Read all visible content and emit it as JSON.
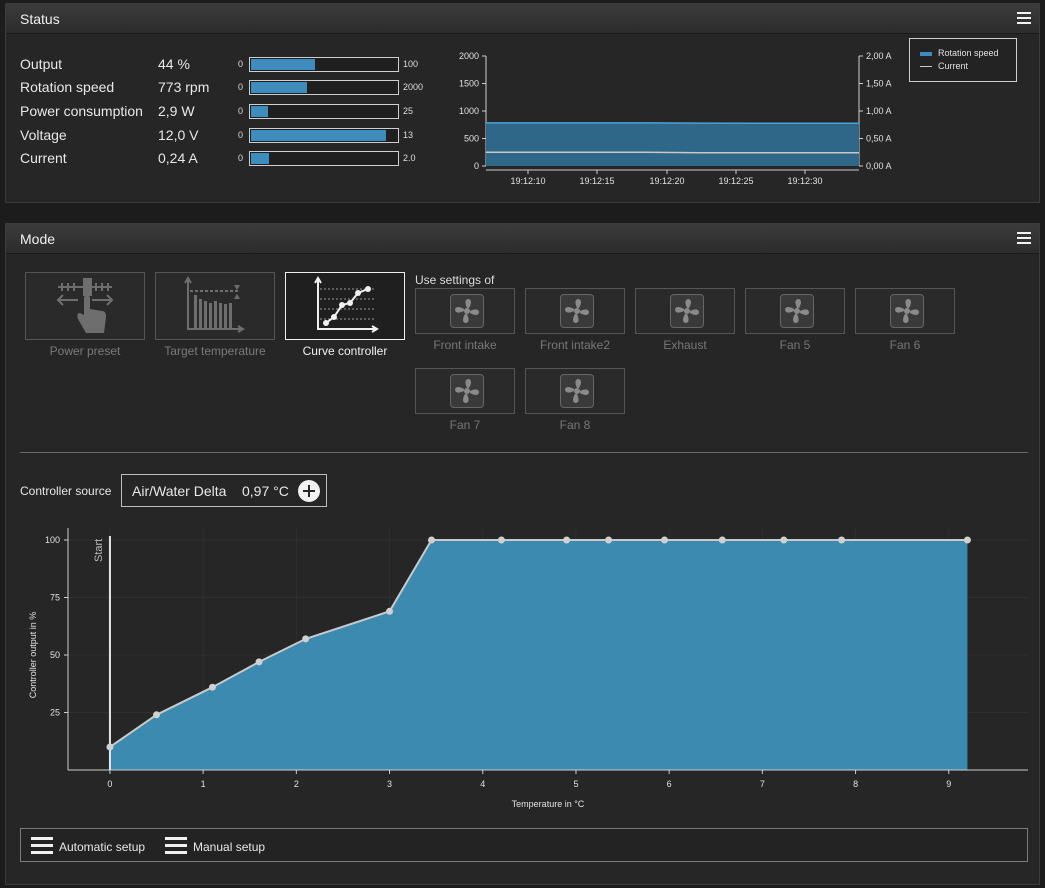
{
  "status": {
    "title": "Status",
    "rows": [
      {
        "label": "Output",
        "value": "44 %",
        "min": "0",
        "max": "100",
        "fraction": 0.44
      },
      {
        "label": "Rotation speed",
        "value": "773 rpm",
        "min": "0",
        "max": "2000",
        "fraction": 0.386
      },
      {
        "label": "Power consumption",
        "value": "2,9 W",
        "min": "0",
        "max": "25",
        "fraction": 0.116
      },
      {
        "label": "Voltage",
        "value": "12,0 V",
        "min": "0",
        "max": "13",
        "fraction": 0.923
      },
      {
        "label": "Current",
        "value": "0,24 A",
        "min": "0",
        "max": "2.0",
        "fraction": 0.12
      }
    ]
  },
  "status_chart": {
    "type": "area",
    "x_ticks": [
      "19:12:10",
      "19:12:15",
      "19:12:20",
      "19:12:25",
      "19:12:30"
    ],
    "left_ticks": [
      "2000",
      "1500",
      "1000",
      "500",
      "0"
    ],
    "right_ticks": [
      "2,00 A",
      "1,50 A",
      "1,00 A",
      "0,50 A",
      "0,00 A"
    ],
    "left_ylim": [
      0,
      2000
    ],
    "right_ylim": [
      0,
      2
    ],
    "series": [
      {
        "name": "Rotation speed",
        "values": [
          785,
          785,
          785,
          785,
          780,
          778,
          778,
          778
        ]
      },
      {
        "name": "Current",
        "values": [
          0.25,
          0.25,
          0.25,
          0.25,
          0.24,
          0.24,
          0.24,
          0.24
        ]
      }
    ],
    "colors": {
      "rotation": "#3d8cbd",
      "current": "#c8c8c8"
    }
  },
  "mode": {
    "title": "Mode",
    "modes": [
      {
        "label": "Power preset",
        "active": false
      },
      {
        "label": "Target temperature",
        "active": false
      },
      {
        "label": "Curve controller",
        "active": true
      }
    ],
    "use_settings_label": "Use settings of",
    "fans": [
      "Front intake",
      "Front intake2",
      "Exhaust",
      "Fan 5",
      "Fan 6",
      "Fan 7",
      "Fan 8"
    ],
    "controller_source_label": "Controller source",
    "controller_source_name": "Air/Water Delta",
    "controller_source_value": "0,97 °C",
    "automatic_setup": "Automatic setup",
    "manual_setup": "Manual setup"
  },
  "chart_data": {
    "type": "area",
    "xlabel": "Temperature in °C",
    "ylabel": "Controller output in %",
    "x_ticks": [
      "0",
      "1",
      "2",
      "3",
      "4",
      "5",
      "6",
      "7",
      "8",
      "9"
    ],
    "y_ticks": [
      "25",
      "50",
      "75",
      "100"
    ],
    "xlim": [
      -0.45,
      9.85
    ],
    "ylim": [
      0,
      100
    ],
    "start_label": "Start",
    "start_x": 0,
    "grid": true,
    "points": [
      {
        "x": 0,
        "y": 10
      },
      {
        "x": 0.5,
        "y": 24
      },
      {
        "x": 1.1,
        "y": 36
      },
      {
        "x": 1.6,
        "y": 47
      },
      {
        "x": 2.1,
        "y": 57
      },
      {
        "x": 3.0,
        "y": 69
      },
      {
        "x": 3.45,
        "y": 100
      },
      {
        "x": 4.2,
        "y": 100
      },
      {
        "x": 4.9,
        "y": 100
      },
      {
        "x": 5.35,
        "y": 100
      },
      {
        "x": 5.95,
        "y": 100
      },
      {
        "x": 6.57,
        "y": 100
      },
      {
        "x": 7.23,
        "y": 100
      },
      {
        "x": 7.85,
        "y": 100
      },
      {
        "x": 9.2,
        "y": 100
      }
    ],
    "fill_color": "#3d8ab0",
    "line_color": "#c9c9c9"
  }
}
